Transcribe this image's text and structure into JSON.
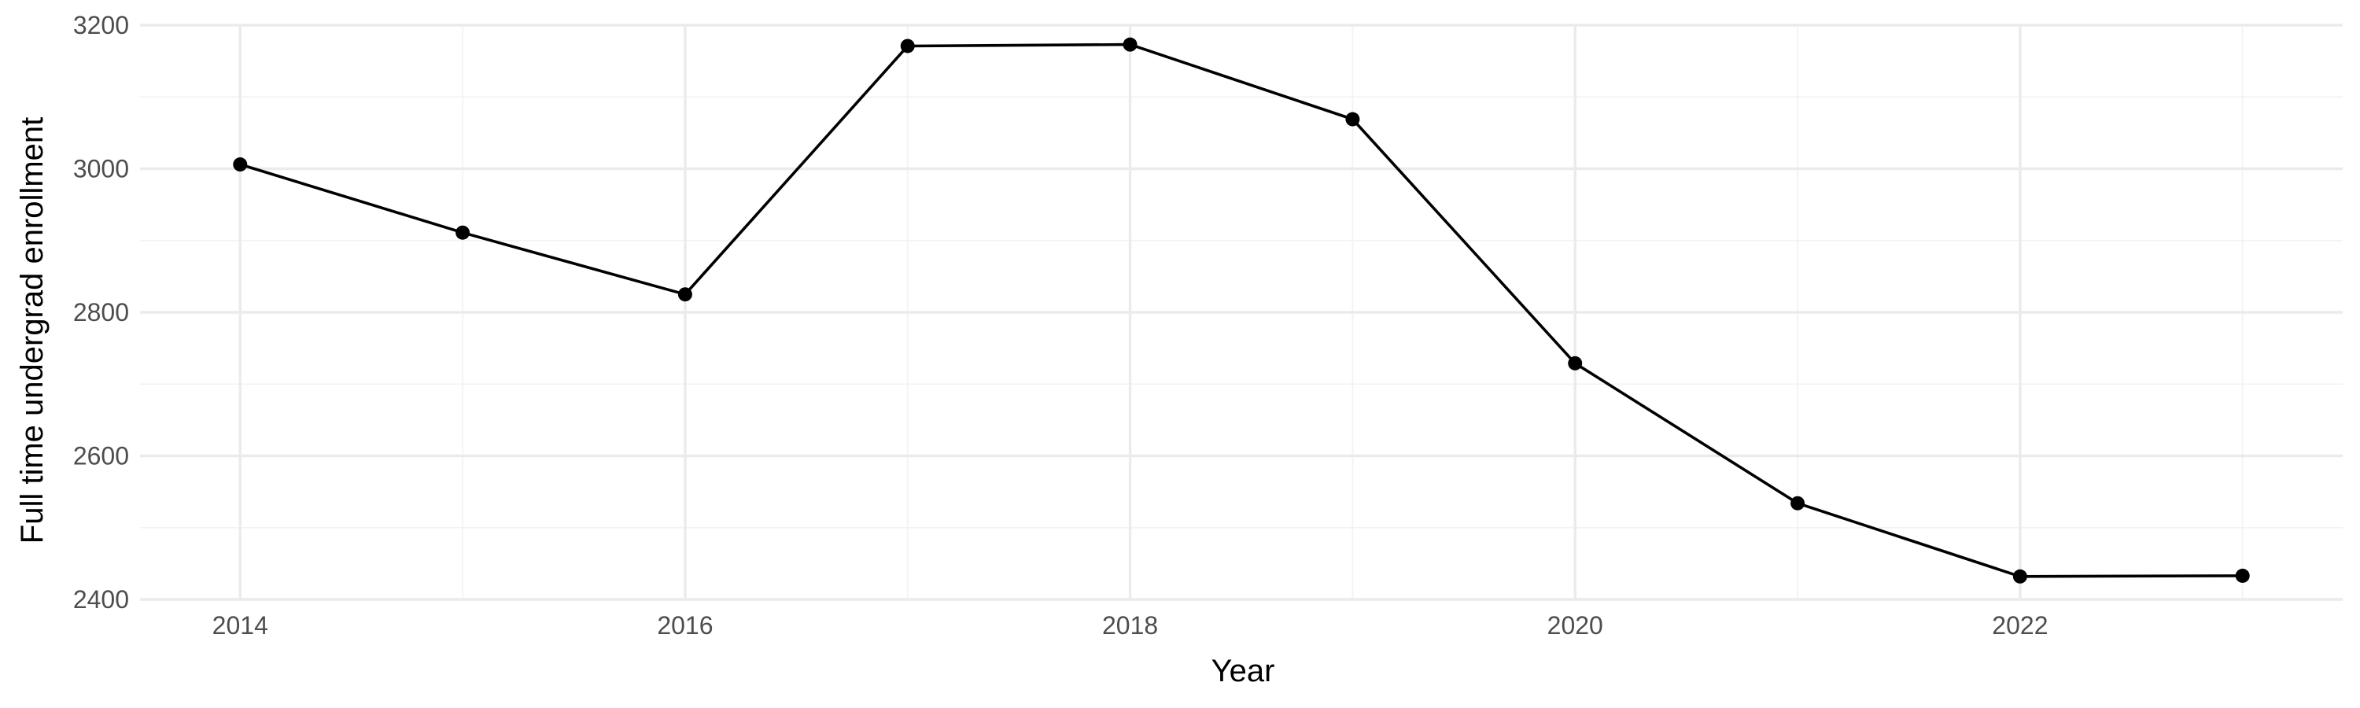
{
  "chart_data": {
    "type": "line",
    "title": "",
    "xlabel": "Year",
    "ylabel": "Full time undergrad enrollment",
    "x": [
      2014,
      2015,
      2016,
      2017,
      2018,
      2019,
      2020,
      2021,
      2022,
      2023
    ],
    "series": [
      {
        "values": [
          3006,
          2911,
          2825,
          3171,
          3173,
          3069,
          2729,
          2534,
          2432,
          2433
        ]
      }
    ],
    "xlim": [
      2013.55,
      2023.45
    ],
    "ylim": [
      2400,
      3200
    ],
    "x_ticks": [
      2014,
      2016,
      2018,
      2020,
      2022
    ],
    "y_ticks": [
      2400,
      2600,
      2800,
      3000,
      3200
    ],
    "x_minor_ticks": [
      2015,
      2017,
      2019,
      2021,
      2023
    ],
    "y_minor_ticks": [
      2500,
      2700,
      2900,
      3100
    ],
    "grid": true,
    "legend": "none",
    "line_color": "#000000",
    "point_color": "#000000",
    "grid_color": "#ebebeb"
  }
}
